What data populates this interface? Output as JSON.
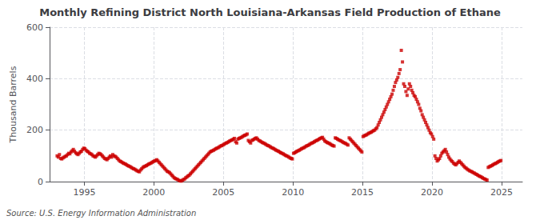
{
  "chart_data": {
    "type": "scatter",
    "title": "Monthly Refining District North Louisiana-Arkansas Field Production of Ethane",
    "ylabel": "Thousand Barrels",
    "annotations": [
      "Source: U.S. Energy Information Administration"
    ],
    "color": "#cc0000",
    "marker": "square",
    "grid": true,
    "xlim": [
      1992.5,
      2026.5
    ],
    "xticks": [
      1995,
      2000,
      2005,
      2010,
      2015,
      2020,
      2025
    ],
    "ylim": [
      0,
      600
    ],
    "yticks": [
      0,
      200,
      400,
      600
    ],
    "x": [
      1993.0416666666667,
      1993.125,
      1993.2083333333333,
      1993.2916666666667,
      1993.375,
      1993.4583333333333,
      1993.5416666666667,
      1993.625,
      1993.7083333333333,
      1993.7916666666667,
      1993.875,
      1993.9583333333333,
      1994.0416666666667,
      1994.125,
      1994.2083333333333,
      1994.2916666666667,
      1994.375,
      1994.4583333333333,
      1994.5416666666667,
      1994.625,
      1994.7083333333333,
      1994.7916666666667,
      1994.875,
      1994.9583333333333,
      1995.0416666666667,
      1995.125,
      1995.2083333333333,
      1995.2916666666667,
      1995.375,
      1995.4583333333333,
      1995.5416666666667,
      1995.625,
      1995.7083333333333,
      1995.7916666666667,
      1995.875,
      1995.9583333333333,
      1996.0416666666667,
      1996.125,
      1996.2083333333333,
      1996.2916666666667,
      1996.375,
      1996.4583333333333,
      1996.5416666666667,
      1996.625,
      1996.7083333333333,
      1996.7916666666667,
      1996.875,
      1996.9583333333333,
      1997.0416666666667,
      1997.125,
      1997.2083333333333,
      1997.2916666666667,
      1997.375,
      1997.4583333333333,
      1997.5416666666667,
      1997.625,
      1997.7083333333333,
      1997.7916666666667,
      1997.875,
      1997.9583333333333,
      1998.0416666666667,
      1998.125,
      1998.2083333333333,
      1998.2916666666667,
      1998.375,
      1998.4583333333333,
      1998.5416666666667,
      1998.625,
      1998.7083333333333,
      1998.7916666666667,
      1998.875,
      1998.9583333333333,
      1999.0416666666667,
      1999.125,
      1999.2083333333333,
      1999.2916666666667,
      1999.375,
      1999.4583333333333,
      1999.5416666666667,
      1999.625,
      1999.7083333333333,
      1999.7916666666667,
      1999.875,
      1999.9583333333333,
      2000.0416666666667,
      2000.125,
      2000.2083333333333,
      2000.2916666666667,
      2000.375,
      2000.4583333333333,
      2000.5416666666667,
      2000.625,
      2000.7083333333333,
      2000.7916666666667,
      2000.875,
      2000.9583333333333,
      2001.0416666666667,
      2001.125,
      2001.2083333333333,
      2001.2916666666667,
      2001.375,
      2001.4583333333333,
      2001.5416666666667,
      2001.625,
      2001.7083333333333,
      2001.7916666666667,
      2001.875,
      2001.9583333333333,
      2002.0416666666667,
      2002.125,
      2002.2083333333333,
      2002.2916666666667,
      2002.375,
      2002.4583333333333,
      2002.5416666666667,
      2002.625,
      2002.7083333333333,
      2002.7916666666667,
      2002.875,
      2002.9583333333333,
      2003.0416666666667,
      2003.125,
      2003.2083333333333,
      2003.2916666666667,
      2003.375,
      2003.4583333333333,
      2003.5416666666667,
      2003.625,
      2003.7083333333333,
      2003.7916666666667,
      2003.875,
      2003.9583333333333,
      2004.0416666666667,
      2004.125,
      2004.2083333333333,
      2004.2916666666667,
      2004.375,
      2004.4583333333333,
      2004.5416666666667,
      2004.625,
      2004.7083333333333,
      2004.7916666666667,
      2004.875,
      2004.9583333333333,
      2005.0416666666667,
      2005.125,
      2005.2083333333333,
      2005.2916666666667,
      2005.375,
      2005.4583333333333,
      2005.5416666666667,
      2005.625,
      2005.7083333333333,
      2005.7916666666667,
      2005.875,
      2005.9583333333333,
      2006.0416666666667,
      2006.125,
      2006.2083333333333,
      2006.2916666666667,
      2006.375,
      2006.4583333333333,
      2006.5416666666667,
      2006.625,
      2006.7083333333333,
      2006.7916666666667,
      2006.875,
      2006.9583333333333,
      2007.0416666666667,
      2007.125,
      2007.2083333333333,
      2007.2916666666667,
      2007.375,
      2007.4583333333333,
      2007.5416666666667,
      2007.625,
      2007.7083333333333,
      2007.7916666666667,
      2007.875,
      2007.9583333333333,
      2008.0416666666667,
      2008.125,
      2008.2083333333333,
      2008.2916666666667,
      2008.375,
      2008.4583333333333,
      2008.5416666666667,
      2008.625,
      2008.7083333333333,
      2008.7916666666667,
      2008.875,
      2008.9583333333333,
      2009.0416666666667,
      2009.125,
      2009.2083333333333,
      2009.2916666666667,
      2009.375,
      2009.4583333333333,
      2009.5416666666667,
      2009.625,
      2009.7083333333333,
      2009.7916666666667,
      2009.875,
      2009.9583333333333,
      2010.0416666666667,
      2010.125,
      2010.2083333333333,
      2010.2916666666667,
      2010.375,
      2010.4583333333333,
      2010.5416666666667,
      2010.625,
      2010.7083333333333,
      2010.7916666666667,
      2010.875,
      2010.9583333333333,
      2011.0416666666667,
      2011.125,
      2011.2083333333333,
      2011.2916666666667,
      2011.375,
      2011.4583333333333,
      2011.5416666666667,
      2011.625,
      2011.7083333333333,
      2011.7916666666667,
      2011.875,
      2011.9583333333333,
      2012.0416666666667,
      2012.125,
      2012.2083333333333,
      2012.2916666666667,
      2012.375,
      2012.4583333333333,
      2012.5416666666667,
      2012.625,
      2012.7083333333333,
      2012.7916666666667,
      2012.875,
      2012.9583333333333,
      2013.0416666666667,
      2013.125,
      2013.2083333333333,
      2013.2916666666667,
      2013.375,
      2013.4583333333333,
      2013.5416666666667,
      2013.625,
      2013.7083333333333,
      2013.7916666666667,
      2013.875,
      2013.9583333333333,
      2014.0416666666667,
      2014.125,
      2014.2083333333333,
      2014.2916666666667,
      2014.375,
      2014.4583333333333,
      2014.5416666666667,
      2014.625,
      2014.7083333333333,
      2014.7916666666667,
      2014.875,
      2014.9583333333333,
      2015.0416666666667,
      2015.125,
      2015.2083333333333,
      2015.2916666666667,
      2015.375,
      2015.4583333333333,
      2015.5416666666667,
      2015.625,
      2015.7083333333333,
      2015.7916666666667,
      2015.875,
      2015.9583333333333,
      2016.0416666666667,
      2016.125,
      2016.2083333333333,
      2016.2916666666667,
      2016.375,
      2016.4583333333333,
      2016.5416666666667,
      2016.625,
      2016.7083333333333,
      2016.7916666666667,
      2016.875,
      2016.9583333333333,
      2017.0416666666667,
      2017.125,
      2017.2083333333333,
      2017.2916666666667,
      2017.375,
      2017.4583333333333,
      2017.5416666666667,
      2017.625,
      2017.7083333333333,
      2017.7916666666667,
      2017.875,
      2017.9583333333333,
      2018.0416666666667,
      2018.125,
      2018.2083333333333,
      2018.2916666666667,
      2018.375,
      2018.4583333333333,
      2018.5416666666667,
      2018.625,
      2018.7083333333333,
      2018.7916666666667,
      2018.875,
      2018.9583333333333,
      2019.0416666666667,
      2019.125,
      2019.2083333333333,
      2019.2916666666667,
      2019.375,
      2019.4583333333333,
      2019.5416666666667,
      2019.625,
      2019.7083333333333,
      2019.7916666666667,
      2019.875,
      2019.9583333333333,
      2020.0416666666667,
      2020.125,
      2020.2083333333333,
      2020.2916666666667,
      2020.375,
      2020.4583333333333,
      2020.5416666666667,
      2020.625,
      2020.7083333333333,
      2020.7916666666667,
      2020.875,
      2020.9583333333333,
      2021.0416666666667,
      2021.125,
      2021.2083333333333,
      2021.2916666666667,
      2021.375,
      2021.4583333333333,
      2021.5416666666667,
      2021.625,
      2021.7083333333333,
      2021.7916666666667,
      2021.875,
      2021.9583333333333,
      2022.0416666666667,
      2022.125,
      2022.2083333333333,
      2022.2916666666667,
      2022.375,
      2022.4583333333333,
      2022.5416666666667,
      2022.625,
      2022.7083333333333,
      2022.7916666666667,
      2022.875,
      2022.9583333333333,
      2023.0416666666667,
      2023.125,
      2023.2083333333333,
      2023.2916666666667,
      2023.375,
      2023.4583333333333,
      2023.5416666666667,
      2023.625,
      2023.7083333333333,
      2023.7916666666667,
      2023.875,
      2023.9583333333333,
      2024.0416666666667,
      2024.125,
      2024.2083333333333,
      2024.2916666666667,
      2024.375,
      2024.4583333333333,
      2024.5416666666667,
      2024.625,
      2024.7083333333333,
      2024.7916666666667,
      2024.875,
      2024.9583333333333
    ],
    "values": [
      100,
      95,
      105,
      90,
      88,
      92,
      95,
      98,
      100,
      105,
      110,
      108,
      115,
      120,
      125,
      118,
      112,
      108,
      105,
      110,
      115,
      118,
      125,
      130,
      128,
      122,
      118,
      115,
      110,
      108,
      105,
      100,
      98,
      95,
      100,
      105,
      110,
      108,
      105,
      100,
      95,
      90,
      88,
      85,
      90,
      95,
      100,
      95,
      105,
      100,
      98,
      95,
      90,
      85,
      80,
      78,
      75,
      72,
      70,
      68,
      65,
      62,
      60,
      58,
      55,
      52,
      50,
      48,
      45,
      42,
      40,
      38,
      45,
      50,
      55,
      58,
      60,
      62,
      65,
      68,
      70,
      72,
      75,
      78,
      80,
      82,
      85,
      80,
      75,
      70,
      65,
      60,
      55,
      50,
      45,
      40,
      38,
      35,
      30,
      25,
      20,
      15,
      12,
      10,
      8,
      5,
      3,
      2,
      5,
      8,
      10,
      15,
      18,
      22,
      25,
      30,
      35,
      40,
      45,
      50,
      55,
      60,
      65,
      70,
      75,
      80,
      85,
      90,
      95,
      100,
      105,
      110,
      115,
      118,
      120,
      122,
      125,
      128,
      130,
      132,
      135,
      138,
      140,
      142,
      145,
      148,
      150,
      152,
      155,
      158,
      160,
      162,
      165,
      168,
      155,
      150,
      165,
      168,
      170,
      172,
      175,
      178,
      180,
      182,
      185,
      160,
      155,
      150,
      160,
      162,
      165,
      168,
      170,
      165,
      160,
      158,
      155,
      152,
      150,
      148,
      145,
      142,
      140,
      138,
      135,
      132,
      130,
      128,
      125,
      122,
      120,
      118,
      115,
      112,
      110,
      108,
      105,
      102,
      100,
      98,
      95,
      92,
      90,
      88,
      110,
      112,
      115,
      118,
      120,
      122,
      125,
      128,
      130,
      132,
      135,
      138,
      140,
      142,
      145,
      148,
      150,
      152,
      155,
      158,
      160,
      162,
      165,
      168,
      170,
      172,
      165,
      158,
      155,
      152,
      150,
      148,
      145,
      142,
      140,
      138,
      170,
      168,
      165,
      162,
      160,
      158,
      155,
      152,
      150,
      148,
      145,
      142,
      170,
      165,
      160,
      155,
      150,
      145,
      140,
      135,
      130,
      125,
      120,
      115,
      175,
      178,
      180,
      182,
      185,
      188,
      190,
      192,
      195,
      198,
      200,
      205,
      210,
      220,
      230,
      240,
      250,
      260,
      270,
      280,
      290,
      300,
      310,
      320,
      330,
      340,
      355,
      370,
      385,
      395,
      405,
      420,
      435,
      510,
      465,
      380,
      370,
      350,
      335,
      360,
      380,
      370,
      355,
      345,
      335,
      330,
      320,
      310,
      300,
      285,
      275,
      260,
      250,
      240,
      230,
      220,
      210,
      200,
      190,
      185,
      175,
      165,
      100,
      90,
      80,
      85,
      90,
      100,
      110,
      115,
      120,
      125,
      115,
      105,
      95,
      88,
      82,
      78,
      72,
      68,
      65,
      70,
      75,
      80,
      75,
      70,
      65,
      60,
      55,
      52,
      48,
      45,
      42,
      40,
      38,
      35,
      33,
      30,
      28,
      25,
      22,
      20,
      18,
      15,
      12,
      10,
      8,
      6,
      55,
      58,
      60,
      62,
      65,
      68,
      70,
      72,
      75,
      78,
      80,
      82
    ]
  }
}
